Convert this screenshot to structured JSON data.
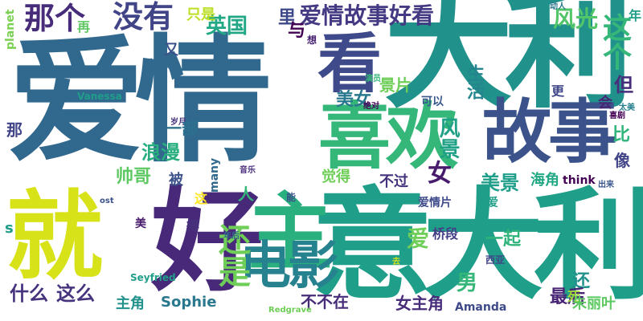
{
  "words": [
    {
      "text": "爱情",
      "color": "#31688e"
    },
    {
      "text": "大利",
      "color": "#21918c"
    },
    {
      "text": "意大利",
      "color": "#1f9e89"
    },
    {
      "text": "故事",
      "color": "#3b528b"
    },
    {
      "text": "好",
      "color": "#482878"
    },
    {
      "text": "就",
      "color": "#d8e219"
    },
    {
      "text": "主",
      "color": "#2ab07f"
    },
    {
      "text": "喜欢",
      "color": "#35b779"
    },
    {
      "text": "看",
      "color": "#3e4a89"
    },
    {
      "text": "电影",
      "color": "#26828e"
    },
    {
      "text": "爱情故事好看",
      "color": "#443983"
    },
    {
      "text": "没有",
      "color": "#414487"
    },
    {
      "text": "那个",
      "color": "#472c7a"
    },
    {
      "text": "还是",
      "color": "#6ece58"
    },
    {
      "text": "风光",
      "color": "#52c569"
    },
    {
      "text": "这个",
      "color": "#35b779"
    },
    {
      "text": "英国",
      "color": "#22a884"
    },
    {
      "text": "只是",
      "color": "#bddf26"
    },
    {
      "text": "里",
      "color": "#3e4989"
    },
    {
      "text": "年",
      "color": "#1f9e89"
    },
    {
      "text": "动人",
      "color": "#2a788e"
    },
    {
      "text": "与",
      "color": "#440154"
    },
    {
      "text": "想",
      "color": "#482173"
    },
    {
      "text": "planet",
      "color": "#7ad151"
    },
    {
      "text": "再",
      "color": "#5ec962"
    },
    {
      "text": "又",
      "color": "#3b528b"
    },
    {
      "text": "怎么",
      "color": "#31688e"
    },
    {
      "text": "生活",
      "color": "#25858e"
    },
    {
      "text": "景片",
      "color": "#6ece58"
    },
    {
      "text": "美女",
      "color": "#2a788e"
    },
    {
      "text": "但",
      "color": "#472d7b"
    },
    {
      "text": "演员",
      "color": "#35b779"
    },
    {
      "text": "风景",
      "color": "#1fa187"
    },
    {
      "text": "女",
      "color": "#481b6d"
    },
    {
      "text": "会",
      "color": "#482475"
    },
    {
      "text": "可以",
      "color": "#38588c"
    },
    {
      "text": "更",
      "color": "#3f4788"
    },
    {
      "text": "绝对",
      "color": "#440154"
    },
    {
      "text": "太美",
      "color": "#277f8e"
    },
    {
      "text": "Vanessa",
      "color": "#1f9e89"
    },
    {
      "text": "喜剧",
      "color": "#440154"
    },
    {
      "text": "岁月",
      "color": "#46337e"
    },
    {
      "text": "那",
      "color": "#414487"
    },
    {
      "text": "一部",
      "color": "#2c728e"
    },
    {
      "text": "浪漫",
      "color": "#29af7f"
    },
    {
      "text": "比",
      "color": "#2fb47c"
    },
    {
      "text": "像",
      "color": "#414487"
    },
    {
      "text": "美景",
      "color": "#1f9e89"
    },
    {
      "text": "觉得",
      "color": "#6ece58"
    },
    {
      "text": "海角",
      "color": "#22a884"
    },
    {
      "text": "think",
      "color": "#440154"
    },
    {
      "text": "不过",
      "color": "#46337e"
    },
    {
      "text": "被",
      "color": "#3b528b"
    },
    {
      "text": "many",
      "color": "#31688e"
    },
    {
      "text": "帅哥",
      "color": "#5ec962"
    },
    {
      "text": "人",
      "color": "#35b779"
    },
    {
      "text": "音乐",
      "color": "#472d7b"
    },
    {
      "text": "这",
      "color": "#fde725"
    },
    {
      "text": "能",
      "color": "#3b528b"
    },
    {
      "text": "爱情片",
      "color": "#3e4a89"
    },
    {
      "text": "可爱",
      "color": "#1f9e89"
    },
    {
      "text": "出来",
      "color": "#39568c"
    },
    {
      "text": "s",
      "color": "#1f9e89"
    },
    {
      "text": "美",
      "color": "#481b6d"
    },
    {
      "text": "得",
      "color": "#46337e"
    },
    {
      "text": "爱",
      "color": "#6ece58"
    },
    {
      "text": "桥段",
      "color": "#433e85"
    },
    {
      "text": "男",
      "color": "#35b779"
    },
    {
      "text": "一起",
      "color": "#2fb47c"
    },
    {
      "text": "西亚",
      "color": "#3f4788"
    },
    {
      "text": "Seyfried",
      "color": "#1f9e89"
    },
    {
      "text": "什么",
      "color": "#46337e"
    },
    {
      "text": "这么",
      "color": "#46337e"
    },
    {
      "text": "还",
      "color": "#21918c"
    },
    {
      "text": "最后",
      "color": "#482475"
    },
    {
      "text": "死",
      "color": "#a2da37"
    },
    {
      "text": "主角",
      "color": "#21918c"
    },
    {
      "text": "Sophie",
      "color": "#2a788e"
    },
    {
      "text": "不不在",
      "color": "#472c7a"
    },
    {
      "text": "女主角",
      "color": "#472c7a"
    },
    {
      "text": "朱丽叶",
      "color": "#5ec962"
    },
    {
      "text": "Amanda",
      "color": "#3e4a89"
    },
    {
      "text": "Redgrave",
      "color": "#6ece58"
    },
    {
      "text": "年后",
      "color": "#31688e"
    },
    {
      "text": "去",
      "color": "#d0e11c"
    },
    {
      "text": "ost",
      "color": "#3b528b"
    }
  ]
}
